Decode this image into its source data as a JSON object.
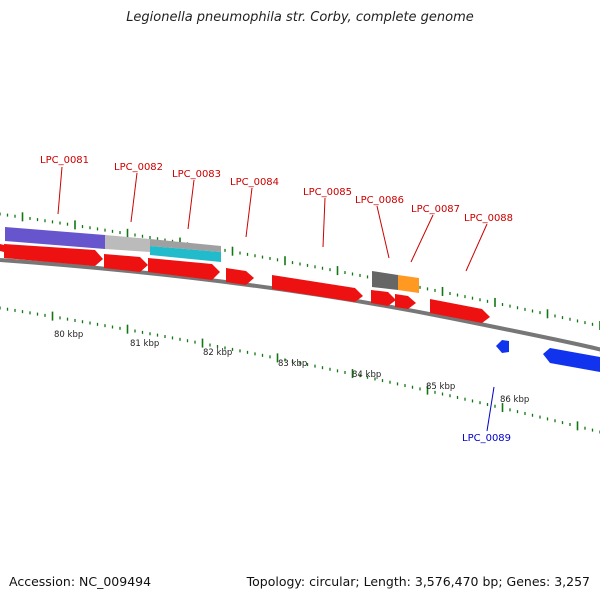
{
  "title": "Legionella pneumophila str. Corby, complete genome",
  "footer": {
    "accession": "Accession: NC_009494",
    "summary": "Topology: circular; Length: 3,576,470 bp; Genes: 3,257"
  },
  "colors": {
    "gene_forward": "#ee1111",
    "gene_reverse": "#1133ee",
    "label_forward": "#cc0000",
    "label_reverse": "#0000cc",
    "backbone": "#777777",
    "tick": "#117711"
  },
  "scale_labels": [
    "80 kbp",
    "81 kbp",
    "82 kbp",
    "83 kbp",
    "84 kbp",
    "85 kbp",
    "86 kbp"
  ],
  "gene_labels": [
    {
      "name": "LPC_0081",
      "strand": "forward"
    },
    {
      "name": "LPC_0082",
      "strand": "forward"
    },
    {
      "name": "LPC_0083",
      "strand": "forward"
    },
    {
      "name": "LPC_0084",
      "strand": "forward"
    },
    {
      "name": "LPC_0085",
      "strand": "forward"
    },
    {
      "name": "LPC_0086",
      "strand": "forward"
    },
    {
      "name": "LPC_0087",
      "strand": "forward"
    },
    {
      "name": "LPC_0088",
      "strand": "forward"
    },
    {
      "name": "LPC_0089",
      "strand": "reverse"
    }
  ]
}
